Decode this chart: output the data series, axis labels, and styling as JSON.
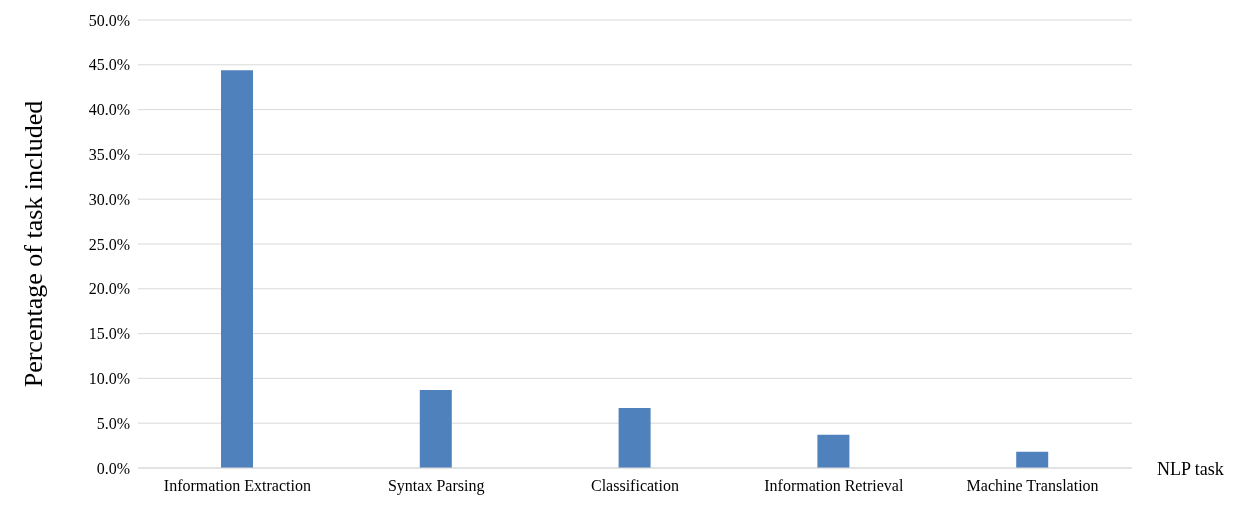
{
  "chart_data": {
    "type": "bar",
    "xlabel": "NLP task",
    "ylabel": "Percentage of task included",
    "categories": [
      "Information Extraction",
      "Syntax Parsing",
      "Classification",
      "Information Retrieval",
      "Machine Translation"
    ],
    "values": [
      44.4,
      8.7,
      6.7,
      3.7,
      1.8
    ],
    "color": "#4f81bd",
    "ylim": [
      0,
      50
    ],
    "yticks": [
      {
        "value": 0,
        "label": "0.0%"
      },
      {
        "value": 5,
        "label": "5.0%"
      },
      {
        "value": 10,
        "label": "10.0%"
      },
      {
        "value": 15,
        "label": "15.0%"
      },
      {
        "value": 20,
        "label": "20.0%"
      },
      {
        "value": 25,
        "label": "25.0%"
      },
      {
        "value": 30,
        "label": "30.0%"
      },
      {
        "value": 35,
        "label": "35.0%"
      },
      {
        "value": 40,
        "label": "40.0%"
      },
      {
        "value": 45,
        "label": "45.0%"
      },
      {
        "value": 50,
        "label": "50.0%"
      }
    ],
    "grid": "y"
  }
}
